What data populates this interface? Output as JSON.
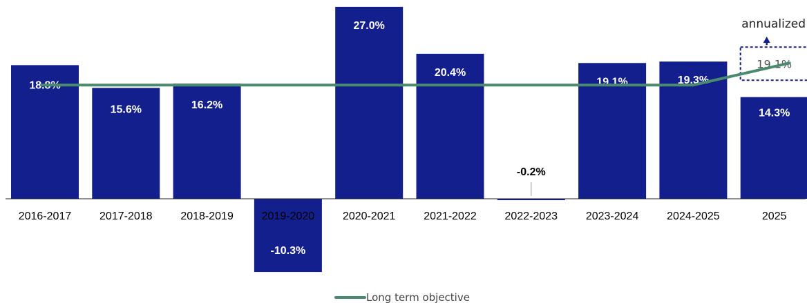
{
  "chart_data": {
    "type": "bar",
    "categories": [
      "2016-2017",
      "2017-2018",
      "2018-2019",
      "2019-2020",
      "2020-2021",
      "2021-2022",
      "2022-2023",
      "2023-2024",
      "2024-2025",
      "2025"
    ],
    "values": [
      18.8,
      15.6,
      16.2,
      -10.3,
      27.0,
      20.4,
      -0.2,
      19.1,
      19.3,
      14.3
    ],
    "value_labels": [
      "18.8%",
      "15.6%",
      "16.2%",
      "-10.3%",
      "27.0%",
      "20.4%",
      "-0.2%",
      "19.1%",
      "19.3%",
      "14.3%"
    ],
    "series": [
      {
        "name": "Long term objective",
        "type": "line",
        "values": [
          16.0,
          16.0,
          16.0,
          16.0,
          16.0,
          16.0,
          16.0,
          16.0,
          16.0,
          19.1
        ]
      }
    ],
    "annotation": {
      "text": "annualized",
      "value_label": "19.1%",
      "category": "2025",
      "value": 19.1
    },
    "ylim": [
      -13,
      28
    ],
    "grid": false,
    "legend_position": "bottom-center",
    "colors": {
      "bar": "#131f8c",
      "line": "#4a8a6e",
      "annotation_box": "#131f8c"
    },
    "title": "",
    "xlabel": "",
    "ylabel": ""
  }
}
